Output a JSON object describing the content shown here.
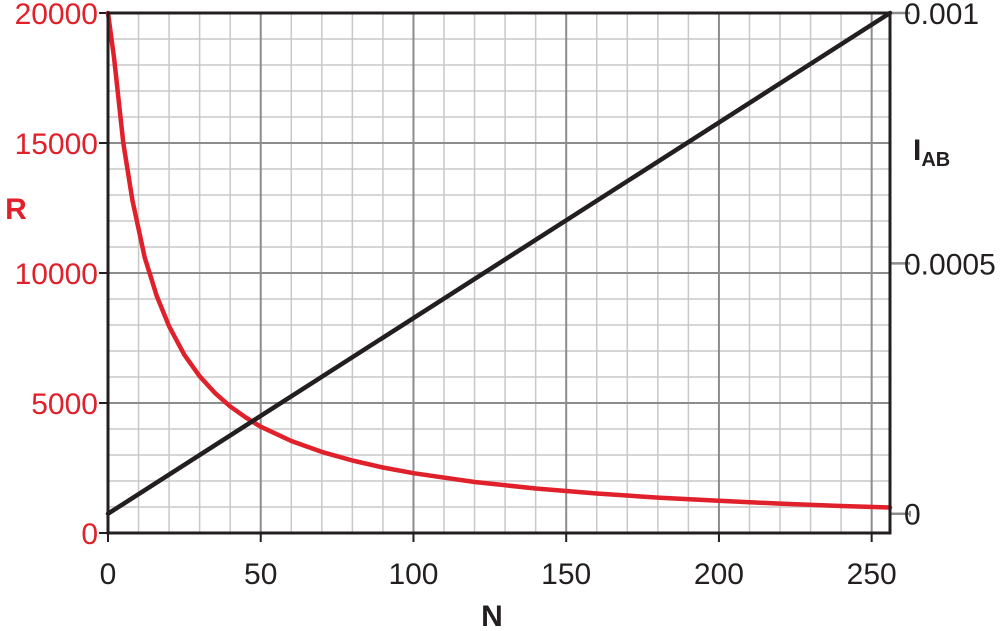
{
  "chart_data": {
    "type": "line",
    "xlabel": "N",
    "ylabel_left": "R",
    "ylabel_right": {
      "main": "I",
      "sub": "AB"
    },
    "xlim": [
      0,
      256
    ],
    "ylim_left": [
      0,
      20000
    ],
    "ylim_right": [
      -3.85e-05,
      0.001
    ],
    "grid": true,
    "x_ticks": [
      "0",
      "50",
      "100",
      "150",
      "200",
      "250"
    ],
    "x_tick_values": [
      0,
      50,
      100,
      150,
      200,
      250
    ],
    "left_ticks": [
      "0",
      "5000",
      "10000",
      "15000",
      "20000"
    ],
    "left_tick_values": [
      0,
      5000,
      10000,
      15000,
      20000
    ],
    "right_ticks": [
      "0",
      "0.0005",
      "0.001"
    ],
    "right_tick_values": [
      0,
      0.0005,
      0.001
    ],
    "colors": {
      "R": "#e0202a",
      "I_AB": "#231f20",
      "grid_minor": "#c8c8c8",
      "grid_major": "#8c8c8c",
      "frame": "#231f20"
    },
    "series": [
      {
        "name": "R",
        "axis": "left",
        "x": [
          0,
          2,
          5,
          8,
          12,
          16,
          20,
          25,
          30,
          35,
          40,
          45,
          50,
          60,
          70,
          80,
          90,
          100,
          120,
          140,
          160,
          180,
          200,
          220,
          240,
          256
        ],
        "values": [
          20000,
          18260,
          15000,
          12800,
          10600,
          9100,
          7950,
          6850,
          6030,
          5390,
          4870,
          4450,
          4090,
          3540,
          3120,
          2790,
          2520,
          2300,
          1960,
          1710,
          1520,
          1360,
          1240,
          1130,
          1040,
          980
        ]
      },
      {
        "name": "I_AB",
        "axis": "right",
        "x": [
          0,
          256
        ],
        "values": [
          0,
          0.001
        ]
      }
    ]
  }
}
